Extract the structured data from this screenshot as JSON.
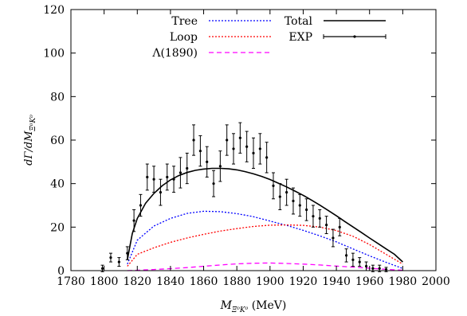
{
  "chart_data": {
    "type": "line",
    "xlabel": "M_{Ξ0K0} (MeV)",
    "xlabel_main": "M",
    "xlabel_sub": "Ξ⁰K⁰",
    "xlabel_unit": " (MeV)",
    "ylabel": "dΓ/dM_{Ξ0K0}",
    "ylabel_main": "dΓ/dM",
    "ylabel_sub": "Ξ⁰K⁰",
    "xlim": [
      1780,
      2000
    ],
    "ylim": [
      0,
      120
    ],
    "xticks": [
      1780,
      1800,
      1820,
      1840,
      1860,
      1880,
      1900,
      1920,
      1940,
      1960,
      1980,
      2000
    ],
    "yticks": [
      0,
      20,
      40,
      60,
      80,
      100,
      120
    ],
    "legend_placement": "top",
    "grid": false,
    "series": [
      {
        "name": "Tree",
        "color": "#0000ff",
        "style": "dotted",
        "x": [
          1814,
          1820,
          1830,
          1840,
          1850,
          1860,
          1870,
          1880,
          1890,
          1900,
          1910,
          1920,
          1930,
          1940,
          1950,
          1960,
          1970,
          1980
        ],
        "y": [
          3,
          14,
          20.5,
          24,
          26.3,
          27.3,
          27.1,
          26.2,
          24.8,
          22.8,
          20.8,
          18.5,
          16,
          13.2,
          10,
          6.8,
          3.8,
          1
        ]
      },
      {
        "name": "Loop",
        "color": "#ff0000",
        "style": "dotted",
        "x": [
          1814,
          1820,
          1830,
          1840,
          1850,
          1860,
          1870,
          1880,
          1890,
          1900,
          1910,
          1920,
          1930,
          1940,
          1950,
          1960,
          1970,
          1980
        ],
        "y": [
          2,
          7.5,
          10.5,
          13,
          15,
          16.7,
          18.2,
          19.3,
          20.3,
          20.9,
          21,
          20.8,
          20,
          18.4,
          15.8,
          12,
          7.5,
          3
        ]
      },
      {
        "name": "Λ(1890)",
        "color": "#ff00ff",
        "style": "dashed",
        "x": [
          1814,
          1820,
          1830,
          1840,
          1850,
          1860,
          1870,
          1880,
          1890,
          1900,
          1910,
          1920,
          1930,
          1940,
          1950,
          1960,
          1970,
          1980
        ],
        "y": [
          0,
          0.2,
          0.5,
          0.9,
          1.4,
          2,
          2.6,
          3.1,
          3.4,
          3.5,
          3.3,
          3,
          2.6,
          2.1,
          1.6,
          1.1,
          0.6,
          0.2
        ]
      },
      {
        "name": "Total",
        "color": "#000000",
        "style": "solid",
        "x": [
          1814,
          1817,
          1820,
          1825,
          1830,
          1835,
          1840,
          1845,
          1850,
          1855,
          1860,
          1865,
          1870,
          1875,
          1880,
          1885,
          1890,
          1895,
          1900,
          1905,
          1910,
          1915,
          1920,
          1925,
          1930,
          1935,
          1940,
          1945,
          1950,
          1955,
          1960,
          1965,
          1970,
          1975,
          1980
        ],
        "y": [
          5,
          17,
          24,
          31,
          35.5,
          39,
          41.7,
          43.7,
          45.1,
          46.1,
          46.7,
          47,
          47,
          46.8,
          46.3,
          45.5,
          44.5,
          43.3,
          41.9,
          40.2,
          38.5,
          36.6,
          34.6,
          32.4,
          30.1,
          27.7,
          25.2,
          22.6,
          20.1,
          17.6,
          15,
          12.5,
          10,
          7.5,
          4
        ]
      },
      {
        "name": "EXP",
        "color": "#000000",
        "style": "errorbar",
        "x": [
          1799,
          1804,
          1809,
          1814,
          1818,
          1822,
          1826,
          1830,
          1834,
          1838,
          1842,
          1846,
          1850,
          1854,
          1858,
          1862,
          1866,
          1870,
          1874,
          1878,
          1882,
          1886,
          1890,
          1894,
          1898,
          1902,
          1906,
          1910,
          1914,
          1918,
          1922,
          1926,
          1930,
          1934,
          1938,
          1942,
          1946,
          1950,
          1954,
          1958,
          1962,
          1966,
          1970
        ],
        "y": [
          1,
          6,
          4,
          8,
          23,
          30,
          43,
          42,
          36,
          43,
          42,
          45,
          47,
          60,
          55,
          50,
          40,
          48,
          60,
          56,
          61,
          57,
          54,
          56,
          52,
          39,
          34,
          36,
          32,
          30,
          28,
          25,
          24,
          21,
          15,
          20,
          7,
          5,
          4,
          2,
          1,
          1,
          0.5
        ],
        "err": [
          1.5,
          2,
          2,
          3,
          5,
          5,
          6,
          6,
          6,
          6,
          6,
          7,
          7,
          7,
          7,
          7,
          6,
          7,
          7,
          7,
          7,
          7,
          7,
          7,
          7,
          6,
          6,
          6,
          6,
          5,
          5,
          5,
          4,
          4,
          4,
          4,
          3,
          3,
          2,
          2,
          1.5,
          1.5,
          1
        ]
      }
    ]
  }
}
